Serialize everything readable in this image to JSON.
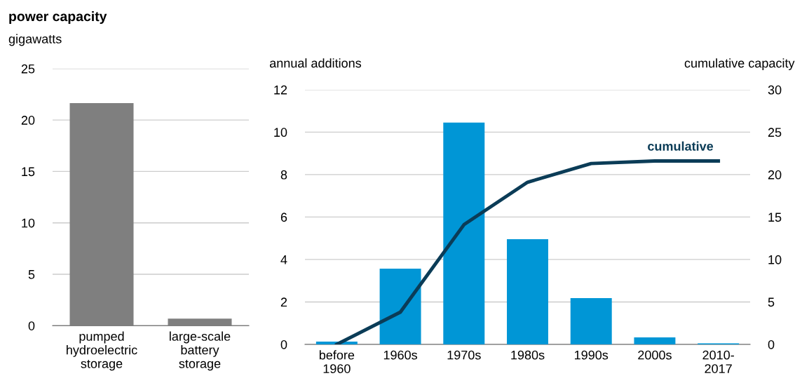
{
  "chart_data": [
    {
      "type": "bar",
      "title": "power capacity",
      "ylabel": "gigawatts",
      "categories": [
        "pumped\nhydroelectric\nstorage",
        "large-scale\nbattery\nstorage"
      ],
      "values": [
        21.65,
        0.68
      ],
      "color": "#7f7f7f",
      "ylim": [
        0,
        25
      ],
      "yticks": [
        0,
        5,
        10,
        15,
        20,
        25
      ],
      "grid": "y"
    },
    {
      "type": "bar",
      "ylabel": "annual additions",
      "y2label": "cumulative capacity",
      "categories": [
        "before\n1960",
        "1960s",
        "1970s",
        "1980s",
        "1990s",
        "2000s",
        "2010-\n2017"
      ],
      "series": [
        {
          "color": "#0096d6",
          "values": [
            0.13,
            3.57,
            10.45,
            4.96,
            2.18,
            0.33,
            0.05
          ]
        },
        {
          "name": "cumulative",
          "type": "line",
          "axis": "y2",
          "color": "#0b3c57",
          "values": [
            0,
            3.8,
            14.1,
            19.1,
            21.3,
            21.6,
            21.6
          ]
        }
      ],
      "ylim": [
        0,
        12
      ],
      "yticks": [
        0,
        2,
        4,
        6,
        8,
        10,
        12
      ],
      "y2lim": [
        0,
        30
      ],
      "y2ticks": [
        0,
        5,
        10,
        15,
        20,
        25,
        30
      ],
      "grid": "y"
    }
  ]
}
